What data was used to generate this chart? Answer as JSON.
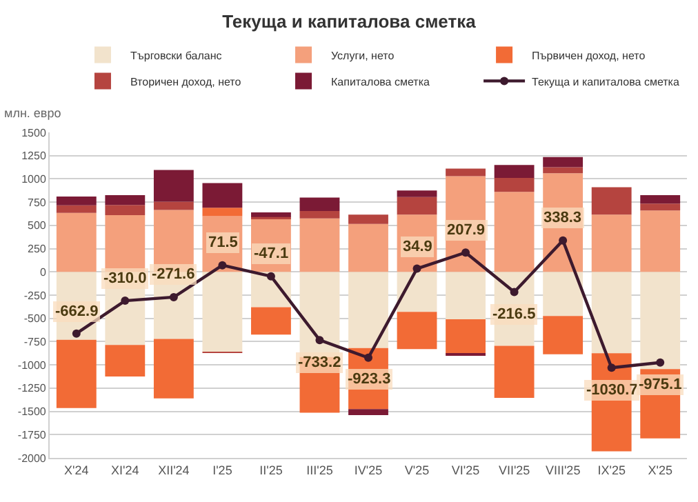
{
  "chart_data": {
    "type": "bar",
    "title": "Текуща и капиталова сметка",
    "annotations": [
      "млн. евро"
    ],
    "stacked": true,
    "grid": "y",
    "legend": "top",
    "categories": [
      "X'24",
      "XI'24",
      "XII'24",
      "I'25",
      "II'25",
      "III'25",
      "IV'25",
      "V'25",
      "VI'25",
      "VII'25",
      "VIII'25",
      "IX'25",
      "X'25"
    ],
    "ylim": [
      -2000,
      1500
    ],
    "yticks": [
      -2000,
      -1750,
      -1500,
      -1250,
      -1000,
      -750,
      -500,
      -250,
      0,
      250,
      500,
      750,
      1000,
      1250,
      1500
    ],
    "series": [
      {
        "name": "Търговски баланс",
        "color": "#f2e3cc",
        "values": [
          -730,
          -785,
          -720,
          -860,
          -380,
          -915,
          -820,
          -430,
          -510,
          -795,
          -475,
          -875,
          -1045
        ]
      },
      {
        "name": "Услуги, нето",
        "color": "#f4a07c",
        "values": [
          635,
          610,
          665,
          600,
          575,
          575,
          515,
          615,
          1030,
          860,
          1060,
          615,
          660
        ]
      },
      {
        "name": "Първичен доход, нето",
        "color": "#f26b36",
        "values": [
          -735,
          -340,
          -640,
          90,
          -295,
          -600,
          -655,
          -400,
          -375,
          -560,
          -410,
          -1055,
          -745
        ]
      },
      {
        "name": "Вторичен доход, нето",
        "color": "#b5443f",
        "values": [
          80,
          110,
          90,
          -10,
          15,
          80,
          100,
          190,
          80,
          150,
          65,
          295,
          75
        ]
      },
      {
        "name": "Капиталова сметка",
        "color": "#7b1a35",
        "values": [
          95,
          105,
          340,
          265,
          50,
          145,
          -65,
          70,
          -10,
          140,
          110,
          null,
          90
        ]
      },
      {
        "name": "Текуща и капиталова сметка",
        "type": "line",
        "color": "#3d1a2e",
        "marker": "circle",
        "values": [
          -662.9,
          -310.0,
          -271.6,
          71.5,
          -47.1,
          -733.2,
          -923.3,
          34.9,
          207.9,
          -216.5,
          338.3,
          -1030.7,
          -975.1
        ],
        "value_labels": [
          "-662.9",
          "-310.0",
          "-271.6",
          "71.5",
          "-47.1",
          "-733.2",
          "-923.3",
          "34.9",
          "207.9",
          "-216.5",
          "338.3",
          "-1030.7",
          "-975.1"
        ]
      }
    ]
  }
}
